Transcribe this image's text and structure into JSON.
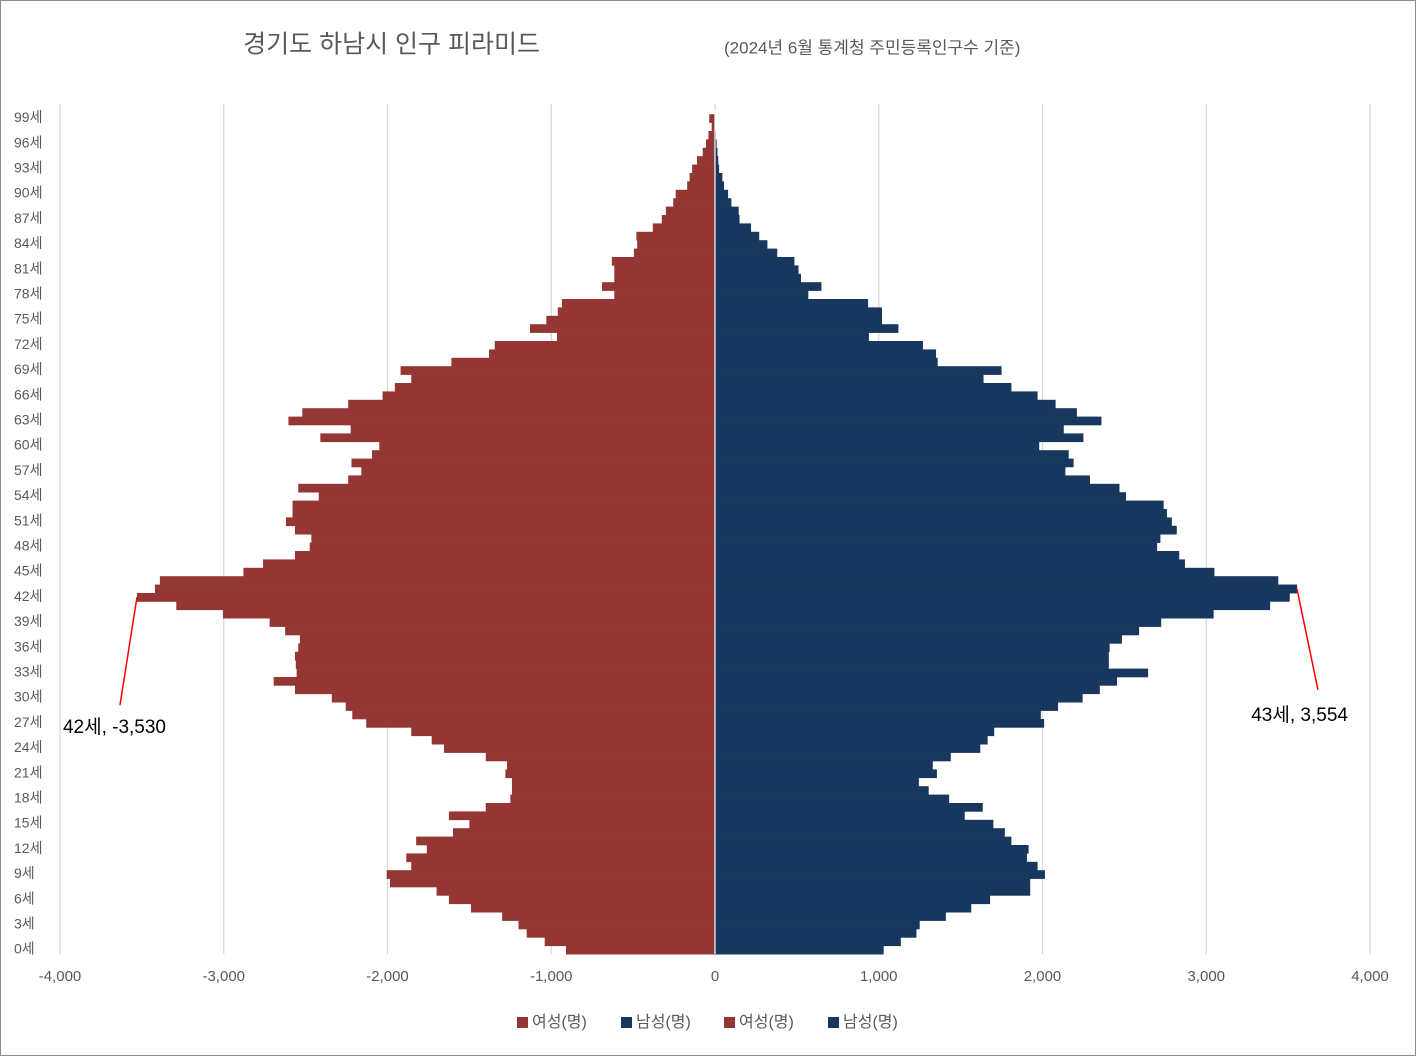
{
  "chart_data": {
    "type": "pyramid",
    "title": "경기도 하남시 인구 피라미드",
    "subtitle": "(2024년 6월 통계청 주민등록인구수 기준)",
    "categories": [
      "0세",
      null,
      null,
      "3세",
      null,
      null,
      "6세",
      null,
      null,
      "9세",
      null,
      null,
      "12세",
      null,
      null,
      "15세",
      null,
      null,
      "18세",
      null,
      null,
      "21세",
      null,
      null,
      "24세",
      null,
      null,
      "27세",
      null,
      null,
      "30세",
      null,
      null,
      "33세",
      null,
      null,
      "36세",
      null,
      null,
      "39세",
      null,
      null,
      "42세",
      null,
      null,
      "45세",
      null,
      null,
      "48세",
      null,
      null,
      "51세",
      null,
      null,
      "54세",
      null,
      null,
      "57세",
      null,
      null,
      "60세",
      null,
      null,
      "63세",
      null,
      null,
      "66세",
      null,
      null,
      "69세",
      null,
      null,
      "72세",
      null,
      null,
      "75세",
      null,
      null,
      "78세",
      null,
      null,
      "81세",
      null,
      null,
      "84세",
      null,
      null,
      "87세",
      null,
      null,
      "90세",
      null,
      null,
      "93세",
      null,
      null,
      "96세",
      null,
      null,
      "99세"
    ],
    "series": [
      {
        "name": "여성(명)",
        "color": "#943634",
        "values": [
          -910,
          -1040,
          -1150,
          -1200,
          -1300,
          -1490,
          -1625,
          -1700,
          -1985,
          -2005,
          -1855,
          -1885,
          -1760,
          -1825,
          -1600,
          -1500,
          -1625,
          -1400,
          -1250,
          -1240,
          -1240,
          -1280,
          -1270,
          -1400,
          -1655,
          -1730,
          -1855,
          -2130,
          -2215,
          -2255,
          -2340,
          -2565,
          -2695,
          -2555,
          -2560,
          -2565,
          -2545,
          -2535,
          -2625,
          -2720,
          -3005,
          -3290,
          -3530,
          -3420,
          -3390,
          -2880,
          -2760,
          -2565,
          -2475,
          -2465,
          -2565,
          -2620,
          -2580,
          -2580,
          -2420,
          -2545,
          -2240,
          -2160,
          -2220,
          -2095,
          -2050,
          -2410,
          -2225,
          -2605,
          -2520,
          -2240,
          -2030,
          -1955,
          -1855,
          -1920,
          -1610,
          -1380,
          -1345,
          -965,
          -1130,
          -1030,
          -960,
          -935,
          -615,
          -690,
          -615,
          -615,
          -630,
          -495,
          -475,
          -480,
          -380,
          -325,
          -300,
          -255,
          -240,
          -170,
          -155,
          -140,
          -110,
          -75,
          -55,
          -40,
          -20,
          -35
        ]
      },
      {
        "name": "남성(명)",
        "color": "#17375e",
        "values": [
          1030,
          1135,
          1230,
          1250,
          1410,
          1565,
          1680,
          1925,
          1925,
          2015,
          1970,
          1905,
          1915,
          1810,
          1770,
          1700,
          1525,
          1635,
          1430,
          1305,
          1245,
          1355,
          1330,
          1440,
          1620,
          1665,
          1705,
          2010,
          1990,
          2095,
          2245,
          2350,
          2455,
          2645,
          2405,
          2405,
          2410,
          2485,
          2590,
          2725,
          3045,
          3390,
          3510,
          3554,
          3440,
          3050,
          2870,
          2835,
          2700,
          2720,
          2820,
          2790,
          2760,
          2740,
          2510,
          2470,
          2290,
          2140,
          2190,
          2160,
          1980,
          2250,
          2130,
          2360,
          2210,
          2080,
          1970,
          1810,
          1640,
          1750,
          1360,
          1350,
          1270,
          940,
          1120,
          1020,
          1020,
          935,
          570,
          650,
          525,
          510,
          485,
          380,
          320,
          270,
          220,
          150,
          145,
          100,
          80,
          55,
          45,
          25,
          20,
          15,
          10,
          5,
          3,
          2
        ]
      },
      {
        "name": "여성(명)",
        "color": "#943634",
        "label_color": "#ff0000",
        "values": [
          null,
          null,
          null,
          null,
          null,
          null,
          null,
          null,
          null,
          null,
          null,
          null,
          null,
          null,
          null,
          null,
          null,
          null,
          null,
          null,
          null,
          null,
          null,
          null,
          null,
          null,
          null,
          null,
          null,
          null,
          null,
          null,
          null,
          null,
          null,
          null,
          null,
          null,
          null,
          null,
          null,
          null,
          -3530,
          null,
          null,
          null,
          null,
          null,
          null,
          null,
          null,
          null,
          null,
          null,
          null,
          null,
          null,
          null,
          null,
          null,
          null,
          null,
          null,
          null,
          null,
          null,
          null,
          null,
          null,
          null,
          null,
          null,
          null,
          null,
          null,
          null,
          null,
          null,
          null,
          null,
          null,
          null,
          null,
          null,
          null,
          null,
          null,
          null,
          null,
          null,
          null,
          null,
          null,
          null,
          null,
          null,
          null,
          null,
          null,
          null
        ],
        "value_labels": [
          null,
          null,
          null,
          null,
          null,
          null,
          null,
          null,
          null,
          null,
          null,
          null,
          null,
          null,
          null,
          null,
          null,
          null,
          null,
          null,
          null,
          null,
          null,
          null,
          null,
          null,
          null,
          null,
          null,
          null,
          null,
          null,
          null,
          null,
          null,
          null,
          null,
          null,
          null,
          null,
          null,
          null,
          "42세, -3,530",
          null,
          null,
          null,
          null,
          null,
          null,
          null,
          null,
          null,
          null,
          null,
          null,
          null,
          null,
          null,
          null,
          null,
          null,
          null,
          null,
          null,
          null,
          null,
          null,
          null,
          null,
          null,
          null,
          null,
          null,
          null,
          null,
          null,
          null,
          null,
          null,
          null,
          null,
          null,
          null,
          null,
          null,
          null,
          null,
          null,
          null,
          null,
          null,
          null,
          null,
          null,
          null,
          null,
          null,
          null,
          null,
          null
        ]
      },
      {
        "name": "남성(명)",
        "color": "#17375e",
        "label_color": "#ff0000",
        "values": [
          null,
          null,
          null,
          null,
          null,
          null,
          null,
          null,
          null,
          null,
          null,
          null,
          null,
          null,
          null,
          null,
          null,
          null,
          null,
          null,
          null,
          null,
          null,
          null,
          null,
          null,
          null,
          null,
          null,
          null,
          null,
          null,
          null,
          null,
          null,
          null,
          null,
          null,
          null,
          null,
          null,
          null,
          null,
          3554,
          null,
          null,
          null,
          null,
          null,
          null,
          null,
          null,
          null,
          null,
          null,
          null,
          null,
          null,
          null,
          null,
          null,
          null,
          null,
          null,
          null,
          null,
          null,
          null,
          null,
          null,
          null,
          null,
          null,
          null,
          null,
          null,
          null,
          null,
          null,
          null,
          null,
          null,
          null,
          null,
          null,
          null,
          null,
          null,
          null,
          null,
          null,
          null,
          null,
          null,
          null,
          null,
          null,
          null,
          null,
          null
        ],
        "value_labels": [
          null,
          null,
          null,
          null,
          null,
          null,
          null,
          null,
          null,
          null,
          null,
          null,
          null,
          null,
          null,
          null,
          null,
          null,
          null,
          null,
          null,
          null,
          null,
          null,
          null,
          null,
          null,
          null,
          null,
          null,
          null,
          null,
          null,
          null,
          null,
          null,
          null,
          null,
          null,
          null,
          null,
          null,
          null,
          "43세, 3,554",
          null,
          null,
          null,
          null,
          null,
          null,
          null,
          null,
          null,
          null,
          null,
          null,
          null,
          null,
          null,
          null,
          null,
          null,
          null,
          null,
          null,
          null,
          null,
          null,
          null,
          null,
          null,
          null,
          null,
          null,
          null,
          null,
          null,
          null,
          null,
          null,
          null,
          null,
          null,
          null,
          null,
          null,
          null,
          null,
          null,
          null,
          null,
          null,
          null,
          null,
          null,
          null,
          null,
          null
        ]
      }
    ],
    "xlim": [
      -4000,
      4000
    ],
    "xticks": [
      {
        "value": -4000,
        "label": "-4,000"
      },
      {
        "value": -3000,
        "label": "-3,000"
      },
      {
        "value": -2000,
        "label": "-2,000"
      },
      {
        "value": -1000,
        "label": "-1,000"
      },
      0,
      {
        "value": 1000,
        "label": "1,000"
      },
      {
        "value": 2000,
        "label": "2,000"
      },
      {
        "value": 3000,
        "label": "3,000"
      },
      {
        "value": 4000,
        "label": "4,000"
      }
    ],
    "grid": true,
    "legend": "bottom"
  }
}
